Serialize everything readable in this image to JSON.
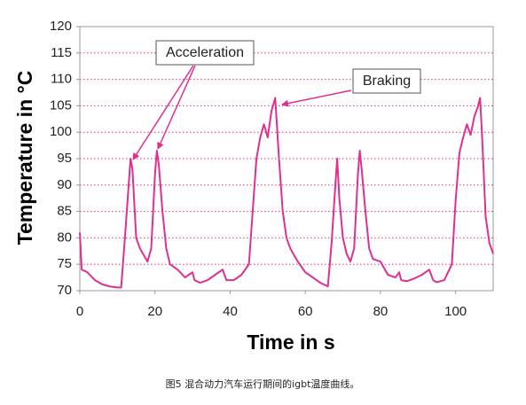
{
  "chart_data": {
    "type": "line",
    "xlabel": "Time in s",
    "ylabel": "Temperature in °C",
    "caption": "图5 混合动力汽车运行期间的igbt温度曲线。",
    "annotations": [
      "Acceleration",
      "Braking"
    ],
    "color": "#e0308f",
    "grid": true,
    "xlim": [
      0,
      110
    ],
    "xticks": [
      0,
      20,
      40,
      60,
      80,
      100
    ],
    "ylim": [
      70,
      120
    ],
    "yticks": [
      70,
      75,
      80,
      85,
      90,
      95,
      100,
      105,
      110,
      115,
      120
    ],
    "x": [
      0,
      0.5,
      2,
      4,
      6,
      8,
      10,
      11,
      12,
      13,
      13.5,
      14,
      15,
      16,
      18,
      19,
      20,
      20.5,
      21,
      22,
      23,
      24,
      26,
      28,
      30,
      30.5,
      32,
      34,
      36,
      38,
      39,
      41,
      43,
      45,
      46,
      47,
      48,
      49,
      50,
      51,
      52,
      53,
      54,
      55,
      56,
      58,
      60,
      62,
      64,
      66,
      67,
      68,
      68.5,
      69,
      70,
      71,
      72,
      73,
      74,
      74.5,
      75,
      76,
      77,
      78,
      80,
      82,
      84,
      85,
      85.5,
      87,
      89,
      91,
      93,
      94,
      95,
      97,
      99,
      100,
      101,
      102,
      103,
      104,
      105,
      106,
      106.5,
      107,
      108,
      109,
      110
    ],
    "values": [
      81,
      74,
      73.5,
      72,
      71.2,
      70.8,
      70.6,
      70.6,
      80,
      90,
      95,
      93,
      80,
      78,
      75.5,
      78,
      92,
      96.5,
      94,
      85,
      78,
      75,
      74,
      72.5,
      73.5,
      72,
      71.5,
      72,
      73,
      74,
      72,
      72,
      73,
      75,
      85,
      95,
      99,
      101.5,
      99,
      104,
      106.5,
      95,
      85,
      80,
      78,
      75.5,
      73.5,
      72.5,
      71.5,
      70.8,
      79,
      90,
      95,
      88,
      80,
      77,
      75.5,
      78,
      92,
      96.5,
      93,
      85,
      78,
      76,
      75.5,
      73,
      72.5,
      73.5,
      72,
      71.8,
      72.3,
      73,
      74,
      72,
      71.6,
      72,
      75,
      87,
      96,
      99,
      101.5,
      99.5,
      103,
      105,
      106.5,
      100,
      84,
      79,
      77
    ]
  }
}
